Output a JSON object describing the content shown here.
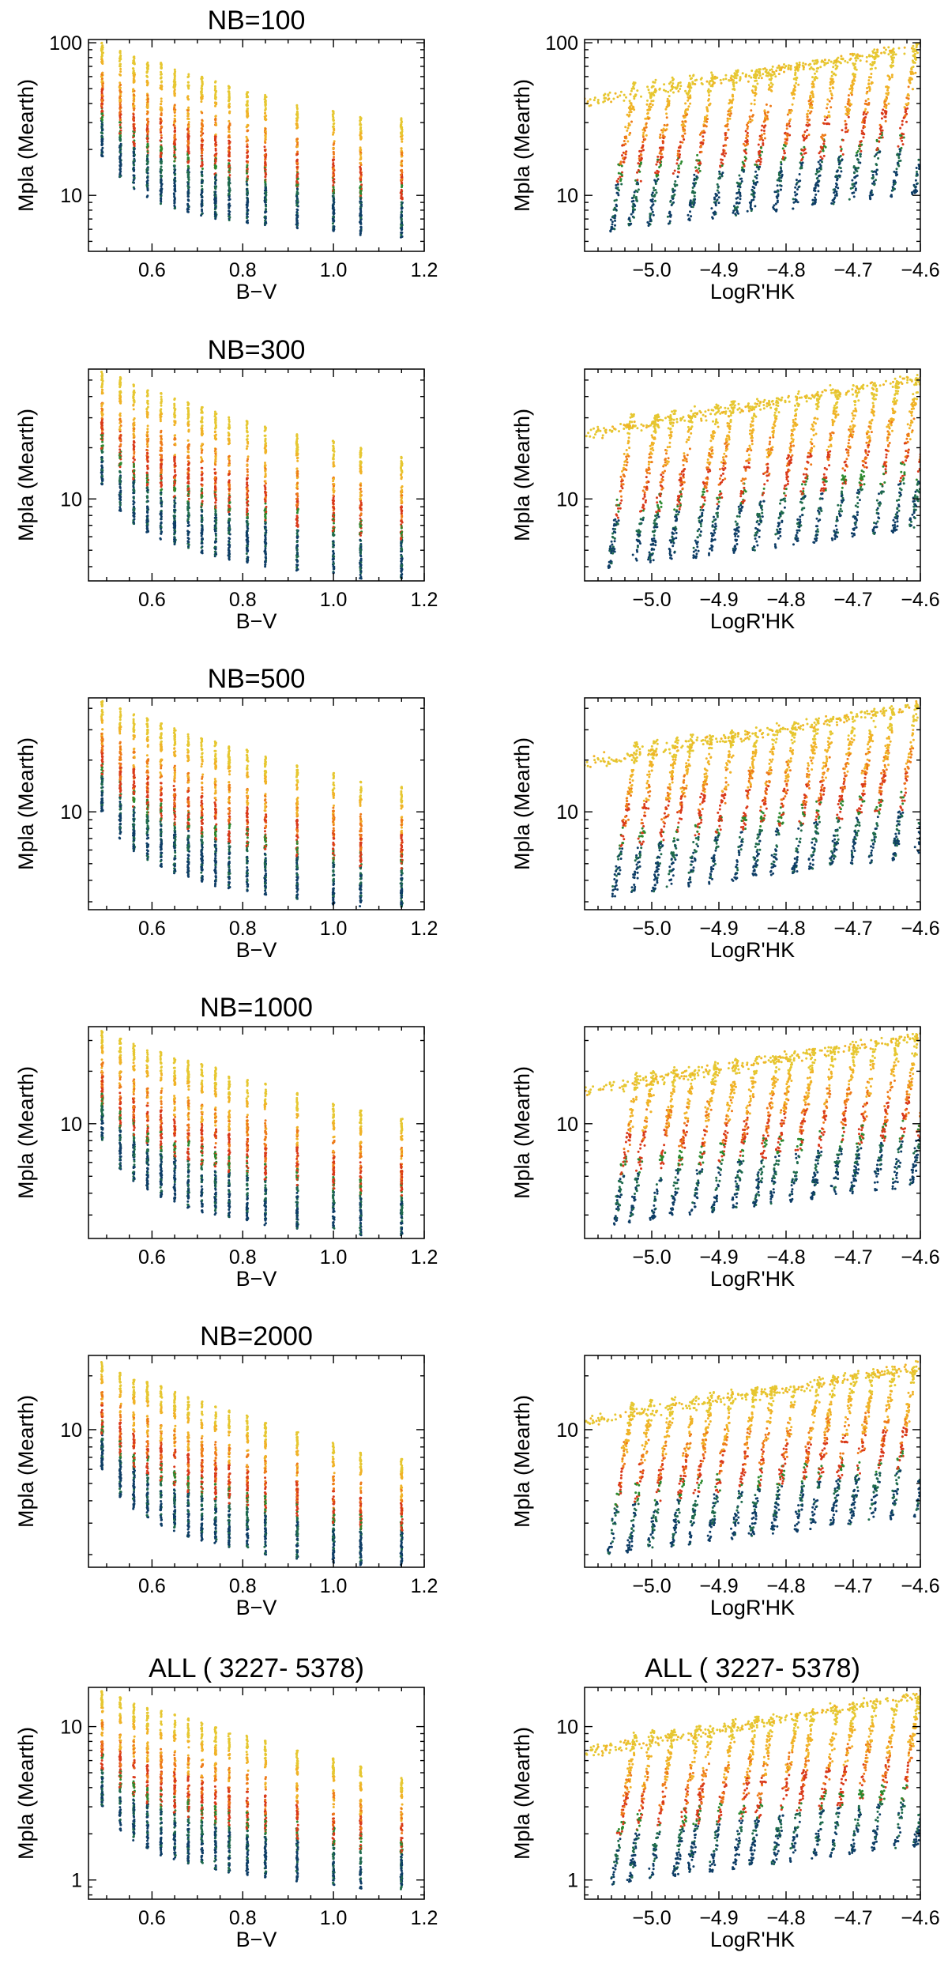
{
  "figure": {
    "palette": [
      "#0e3d66",
      "#1f6b4c",
      "#2c8a2f",
      "#d9391a",
      "#ee7a18",
      "#f0b327",
      "#e6c731"
    ]
  },
  "chart_data": [
    {
      "id": "nb100-bv",
      "type": "scatter",
      "title": "NB=100",
      "xlabel": "B−V",
      "ylabel": "Mpla (Mearth)",
      "xlim": [
        0.46,
        1.2
      ],
      "ylim": [
        4.3,
        105
      ],
      "yscale": "log",
      "xticks": [
        0.6,
        0.8,
        1.0,
        1.2
      ],
      "xtick_labels": [
        "0.6",
        "0.8",
        "1.0",
        "1.2"
      ],
      "yticks": [
        10,
        100
      ],
      "ytick_labels": [
        "10",
        "100"
      ],
      "bv_columns": [
        0.49,
        0.53,
        0.56,
        0.59,
        0.62,
        0.65,
        0.68,
        0.71,
        0.74,
        0.77,
        0.81,
        0.85,
        0.92,
        1.0,
        1.06,
        1.15
      ],
      "lower_envelope": [
        18,
        13,
        11,
        9.7,
        8.8,
        8.2,
        7.7,
        7.3,
        7.0,
        6.8,
        6.6,
        6.4,
        6.1,
        5.8,
        5.5,
        5.3
      ],
      "upper_envelope": [
        100,
        90,
        82,
        78,
        74,
        68,
        65,
        60,
        56,
        52,
        48,
        46,
        40,
        36,
        33,
        32
      ]
    },
    {
      "id": "nb100-rhk",
      "type": "scatter",
      "title": "",
      "xlabel": "LogR'HK",
      "ylabel": "Mpla (Mearth)",
      "xlim": [
        -5.1,
        -4.6
      ],
      "ylim": [
        4.3,
        105
      ],
      "yscale": "log",
      "xticks": [
        -5.0,
        -4.9,
        -4.8,
        -4.7,
        -4.6
      ],
      "xtick_labels": [
        "−5.0",
        "−4.9",
        "−4.8",
        "−4.7",
        "−4.6"
      ],
      "yticks": [
        10,
        100
      ],
      "ytick_labels": [
        "10",
        "100"
      ],
      "mass_range": [
        5,
        100
      ]
    },
    {
      "id": "nb300-bv",
      "type": "scatter",
      "title": "NB=300",
      "xlabel": "B−V",
      "ylabel": "Mpla (Mearth)",
      "xlim": [
        0.46,
        1.2
      ],
      "ylim": [
        3.3,
        58
      ],
      "yscale": "log",
      "xticks": [
        0.6,
        0.8,
        1.0,
        1.2
      ],
      "xtick_labels": [
        "0.6",
        "0.8",
        "1.0",
        "1.2"
      ],
      "yticks": [
        10
      ],
      "ytick_labels": [
        "10"
      ],
      "bv_columns": [
        0.49,
        0.53,
        0.56,
        0.59,
        0.62,
        0.65,
        0.68,
        0.71,
        0.74,
        0.77,
        0.81,
        0.85,
        0.92,
        1.0,
        1.06,
        1.15
      ],
      "lower_envelope": [
        12,
        8.5,
        7.1,
        6.3,
        5.8,
        5.4,
        5.1,
        4.8,
        4.6,
        4.4,
        4.2,
        4.0,
        3.8,
        3.6,
        3.4,
        3.4
      ],
      "upper_envelope": [
        56,
        52,
        48,
        44,
        42,
        39,
        37,
        35,
        33,
        31,
        29,
        27,
        24,
        22,
        20,
        18
      ]
    },
    {
      "id": "nb300-rhk",
      "type": "scatter",
      "title": "",
      "xlabel": "LogR'HK",
      "ylabel": "Mpla (Mearth)",
      "xlim": [
        -5.1,
        -4.6
      ],
      "ylim": [
        3.3,
        58
      ],
      "yscale": "log",
      "xticks": [
        -5.0,
        -4.9,
        -4.8,
        -4.7,
        -4.6
      ],
      "xtick_labels": [
        "−5.0",
        "−4.9",
        "−4.8",
        "−4.7",
        "−4.6"
      ],
      "yticks": [
        10
      ],
      "ytick_labels": [
        "10"
      ],
      "mass_range": [
        3.4,
        55
      ]
    },
    {
      "id": "nb500-bv",
      "type": "scatter",
      "title": "NB=500",
      "xlabel": "B−V",
      "ylabel": "Mpla (Mearth)",
      "xlim": [
        0.46,
        1.2
      ],
      "ylim": [
        2.7,
        46
      ],
      "yscale": "log",
      "xticks": [
        0.6,
        0.8,
        1.0,
        1.2
      ],
      "xtick_labels": [
        "0.6",
        "0.8",
        "1.0",
        "1.2"
      ],
      "yticks": [
        10
      ],
      "ytick_labels": [
        "10"
      ],
      "bv_columns": [
        0.49,
        0.53,
        0.56,
        0.59,
        0.62,
        0.65,
        0.68,
        0.71,
        0.74,
        0.77,
        0.81,
        0.85,
        0.92,
        1.0,
        1.06,
        1.15
      ],
      "lower_envelope": [
        10,
        7,
        5.9,
        5.2,
        4.8,
        4.4,
        4.2,
        3.9,
        3.7,
        3.6,
        3.4,
        3.3,
        3.1,
        2.9,
        2.8,
        2.8
      ],
      "upper_envelope": [
        44,
        40,
        37,
        35,
        33,
        31,
        29,
        27,
        26,
        24,
        23,
        21,
        19,
        17,
        15,
        14
      ]
    },
    {
      "id": "nb500-rhk",
      "type": "scatter",
      "title": "",
      "xlabel": "LogR'HK",
      "ylabel": "Mpla (Mearth)",
      "xlim": [
        -5.1,
        -4.6
      ],
      "ylim": [
        2.7,
        46
      ],
      "yscale": "log",
      "xticks": [
        -5.0,
        -4.9,
        -4.8,
        -4.7,
        -4.6
      ],
      "xtick_labels": [
        "−5.0",
        "−4.9",
        "−4.8",
        "−4.7",
        "−4.6"
      ],
      "yticks": [
        10
      ],
      "ytick_labels": [
        "10"
      ],
      "mass_range": [
        2.8,
        44
      ]
    },
    {
      "id": "nb1000-bv",
      "type": "scatter",
      "title": "NB=1000",
      "xlabel": "B−V",
      "ylabel": "Mpla (Mearth)",
      "xlim": [
        0.46,
        1.2
      ],
      "ylim": [
        2.2,
        36
      ],
      "yscale": "log",
      "xticks": [
        0.6,
        0.8,
        1.0,
        1.2
      ],
      "xtick_labels": [
        "0.6",
        "0.8",
        "1.0",
        "1.2"
      ],
      "yticks": [
        10
      ],
      "ytick_labels": [
        "10"
      ],
      "bv_columns": [
        0.49,
        0.53,
        0.56,
        0.59,
        0.62,
        0.65,
        0.68,
        0.71,
        0.74,
        0.77,
        0.81,
        0.85,
        0.92,
        1.0,
        1.06,
        1.15
      ],
      "lower_envelope": [
        8,
        5.5,
        4.7,
        4.2,
        3.8,
        3.5,
        3.3,
        3.1,
        3.0,
        2.9,
        2.8,
        2.6,
        2.5,
        2.4,
        2.3,
        2.3
      ],
      "upper_envelope": [
        34,
        31,
        29,
        27,
        26,
        24,
        23,
        22,
        21,
        19,
        18,
        17,
        15,
        13,
        12,
        11
      ]
    },
    {
      "id": "nb1000-rhk",
      "type": "scatter",
      "title": "",
      "xlabel": "LogR'HK",
      "ylabel": "Mpla (Mearth)",
      "xlim": [
        -5.1,
        -4.6
      ],
      "ylim": [
        2.2,
        36
      ],
      "yscale": "log",
      "xticks": [
        -5.0,
        -4.9,
        -4.8,
        -4.7,
        -4.6
      ],
      "xtick_labels": [
        "−5.0",
        "−4.9",
        "−4.8",
        "−4.7",
        "−4.6"
      ],
      "yticks": [
        10
      ],
      "ytick_labels": [
        "10"
      ],
      "mass_range": [
        2.3,
        34
      ]
    },
    {
      "id": "nb2000-bv",
      "type": "scatter",
      "title": "NB=2000",
      "xlabel": "B−V",
      "ylabel": "Mpla (Mearth)",
      "xlim": [
        0.46,
        1.2
      ],
      "ylim": [
        1.7,
        26
      ],
      "yscale": "log",
      "xticks": [
        0.6,
        0.8,
        1.0,
        1.2
      ],
      "xtick_labels": [
        "0.6",
        "0.8",
        "1.0",
        "1.2"
      ],
      "yticks": [
        10
      ],
      "ytick_labels": [
        "10"
      ],
      "bv_columns": [
        0.49,
        0.53,
        0.56,
        0.59,
        0.62,
        0.65,
        0.68,
        0.71,
        0.74,
        0.77,
        0.81,
        0.85,
        0.92,
        1.0,
        1.06,
        1.15
      ],
      "lower_envelope": [
        6,
        4.2,
        3.6,
        3.2,
        2.9,
        2.7,
        2.5,
        2.4,
        2.3,
        2.2,
        2.1,
        2.0,
        1.9,
        1.8,
        1.75,
        1.75
      ],
      "upper_envelope": [
        24,
        21,
        19.5,
        18.5,
        17.5,
        16.5,
        15.5,
        14.5,
        13.5,
        12.8,
        12,
        11,
        10,
        8.5,
        7.5,
        7
      ]
    },
    {
      "id": "nb2000-rhk",
      "type": "scatter",
      "title": "",
      "xlabel": "LogR'HK",
      "ylabel": "Mpla (Mearth)",
      "xlim": [
        -5.1,
        -4.6
      ],
      "ylim": [
        1.7,
        26
      ],
      "yscale": "log",
      "xticks": [
        -5.0,
        -4.9,
        -4.8,
        -4.7,
        -4.6
      ],
      "xtick_labels": [
        "−5.0",
        "−4.9",
        "−4.8",
        "−4.7",
        "−4.6"
      ],
      "yticks": [
        10
      ],
      "ytick_labels": [
        "10"
      ],
      "mass_range": [
        1.75,
        24
      ]
    },
    {
      "id": "all-bv",
      "type": "scatter",
      "title": "ALL ( 3227- 5378)",
      "xlabel": "B−V",
      "ylabel": "Mpla (Mearth)",
      "xlim": [
        0.46,
        1.2
      ],
      "ylim": [
        0.75,
        18
      ],
      "yscale": "log",
      "xticks": [
        0.6,
        0.8,
        1.0,
        1.2
      ],
      "xtick_labels": [
        "0.6",
        "0.8",
        "1.0",
        "1.2"
      ],
      "yticks": [
        1,
        10
      ],
      "ytick_labels": [
        "1",
        "10"
      ],
      "bv_columns": [
        0.49,
        0.53,
        0.56,
        0.59,
        0.62,
        0.65,
        0.68,
        0.71,
        0.74,
        0.77,
        0.81,
        0.85,
        0.92,
        1.0,
        1.06,
        1.15
      ],
      "lower_envelope": [
        3,
        2.1,
        1.8,
        1.6,
        1.45,
        1.35,
        1.28,
        1.22,
        1.17,
        1.12,
        1.08,
        1.04,
        0.98,
        0.92,
        0.88,
        0.85
      ],
      "upper_envelope": [
        17,
        15.5,
        14.5,
        13.5,
        12.8,
        12,
        11.3,
        10.6,
        10,
        9.4,
        8.8,
        8.2,
        7.2,
        6.2,
        5.5,
        4.8
      ]
    },
    {
      "id": "all-rhk",
      "type": "scatter",
      "title": "ALL ( 3227- 5378)",
      "xlabel": "LogR'HK",
      "ylabel": "Mpla (Mearth)",
      "xlim": [
        -5.1,
        -4.6
      ],
      "ylim": [
        0.75,
        18
      ],
      "yscale": "log",
      "xticks": [
        -5.0,
        -4.9,
        -4.8,
        -4.7,
        -4.6
      ],
      "xtick_labels": [
        "−5.0",
        "−4.9",
        "−4.8",
        "−4.7",
        "−4.6"
      ],
      "yticks": [
        1,
        10
      ],
      "ytick_labels": [
        "1",
        "10"
      ],
      "mass_range": [
        0.8,
        17
      ]
    }
  ]
}
